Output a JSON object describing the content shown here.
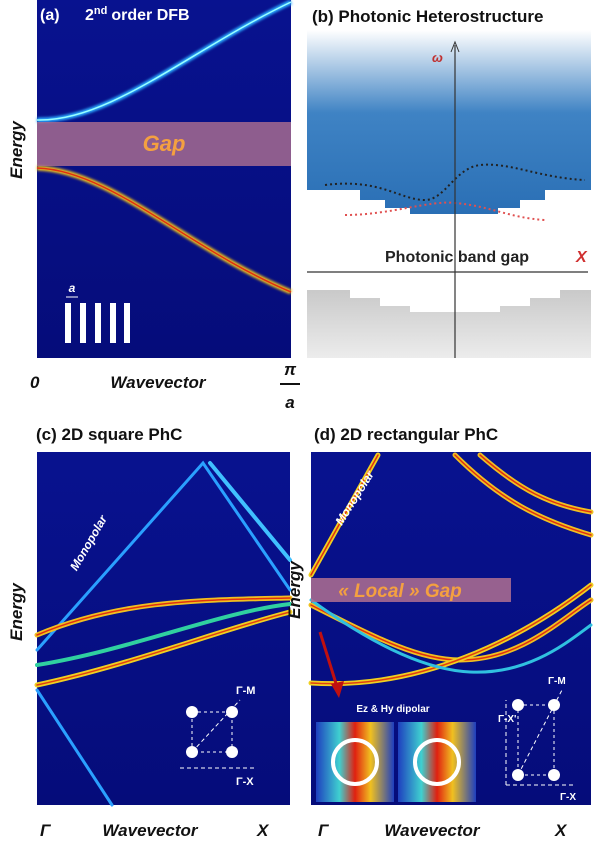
{
  "panels": [
    {
      "title": "(a)",
      "subtitle_base": "2",
      "subtitle_sup": "nd",
      "subtitle_rest": "order DFB",
      "gap": "Gap",
      "y_label": "Energy",
      "x_start": "0",
      "x_label": "Wavevector",
      "x_end_top": "π",
      "x_end_bottom": "a",
      "period": "a"
    },
    {
      "title": "(b) Photonic Heterostructure",
      "omega": "ω",
      "gap": "Photonic band gap",
      "x_axis": "X"
    },
    {
      "title": "(c) 2D square PhC",
      "mode": "Monopolar",
      "y_label": "Energy",
      "x_start": "Γ",
      "x_label": "Wavevector",
      "x_end": "X",
      "dir1": "Γ-M",
      "dir2": "Γ-X"
    },
    {
      "title": "(d) 2D rectangular PhC",
      "mode": "Monopolar",
      "gap": "« Local » Gap",
      "y_label": "Energy",
      "dipole": "Ez & Hy dipolar",
      "x_start": "Γ",
      "x_label": "Wavevector",
      "x_end": "X",
      "dir0": "Γ-X'",
      "dir1": "Γ-M",
      "dir2": "Γ-X"
    }
  ]
}
